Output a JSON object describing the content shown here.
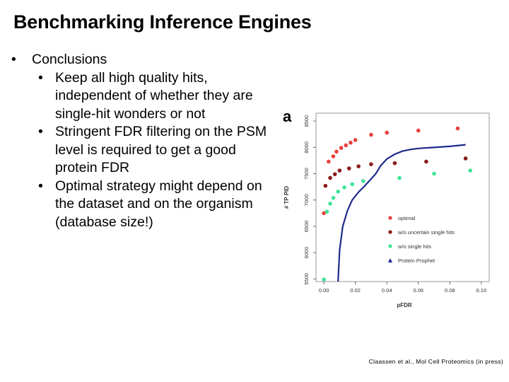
{
  "slide": {
    "title": "Benchmarking Inference Engines",
    "bullets": [
      {
        "text": "Conclusions",
        "children": [
          "Keep all high quality hits, independent of whether they are single-hit wonders or not",
          "Stringent FDR filtering on the PSM level is required to get a good protein FDR",
          "Optimal strategy might depend on the dataset and on the organism (database size!)"
        ]
      }
    ],
    "citation": "Claassen et al., Mol Cell Proteomics (in press)"
  },
  "chart_data": {
    "type": "scatter",
    "panel_label": "a",
    "xlabel": "pFDR",
    "ylabel": "# TP PID",
    "xlim": [
      -0.005,
      0.105
    ],
    "ylim": [
      5450,
      8650
    ],
    "xticks": [
      "0.00",
      "0.02",
      "0.04",
      "0.06",
      "0.08",
      "0.10"
    ],
    "yticks": [
      "5500",
      "6000",
      "6500",
      "7000",
      "7500",
      "8000",
      "8500"
    ],
    "legend_position": "lower-right",
    "series": [
      {
        "name": "optimal",
        "color": "#e8403c",
        "marker": "circle",
        "x": [
          0.0,
          0.003,
          0.006,
          0.008,
          0.011,
          0.014,
          0.017,
          0.02,
          0.03,
          0.04,
          0.06,
          0.085
        ],
        "y": [
          6750,
          7730,
          7830,
          7920,
          7990,
          8040,
          8090,
          8140,
          8240,
          8280,
          8320,
          8360
        ]
      },
      {
        "name": "w/o uncertain single hits",
        "color": "#8b1a1a",
        "marker": "circle",
        "x": [
          0.001,
          0.004,
          0.007,
          0.01,
          0.016,
          0.022,
          0.03,
          0.045,
          0.065,
          0.09
        ],
        "y": [
          7270,
          7420,
          7490,
          7560,
          7600,
          7640,
          7680,
          7700,
          7730,
          7790
        ]
      },
      {
        "name": "w/o single hits",
        "color": "#3fe49a",
        "marker": "circle",
        "x": [
          0.0,
          0.002,
          0.004,
          0.006,
          0.009,
          0.013,
          0.018,
          0.025,
          0.048,
          0.07,
          0.093
        ],
        "y": [
          5490,
          6780,
          6930,
          7040,
          7160,
          7240,
          7300,
          7360,
          7420,
          7500,
          7560
        ]
      },
      {
        "name": "Protein Prophet",
        "color": "#1e2a8c",
        "marker": "line",
        "x": [
          0.009,
          0.01,
          0.012,
          0.015,
          0.018,
          0.022,
          0.026,
          0.03,
          0.033,
          0.036,
          0.04,
          0.045,
          0.05,
          0.055,
          0.06,
          0.07,
          0.08,
          0.09
        ],
        "y": [
          5450,
          6050,
          6500,
          6800,
          7000,
          7150,
          7270,
          7400,
          7500,
          7650,
          7780,
          7870,
          7930,
          7960,
          7980,
          8000,
          8020,
          8050
        ]
      }
    ]
  }
}
